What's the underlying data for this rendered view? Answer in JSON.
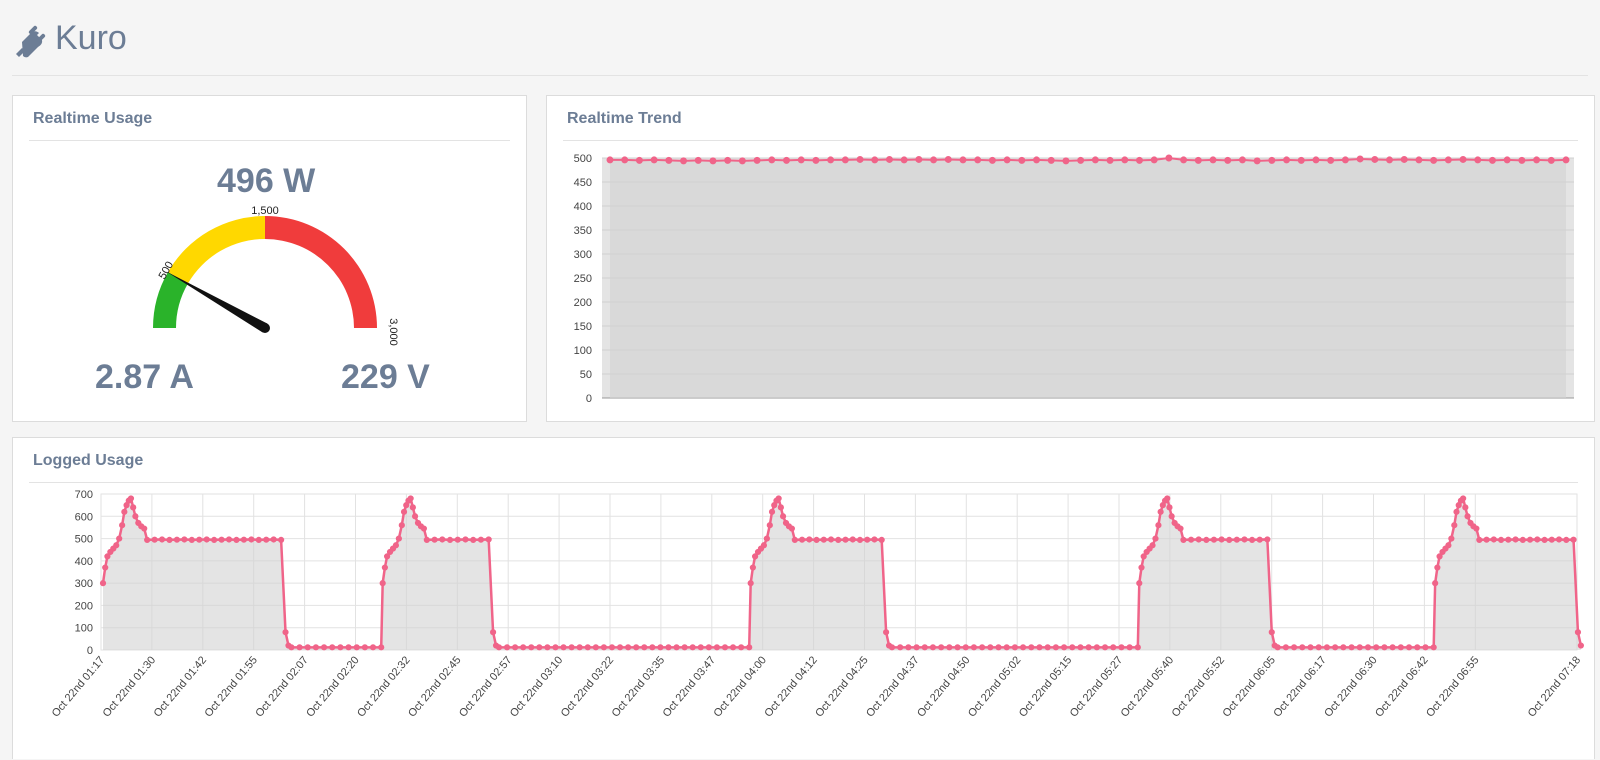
{
  "app": {
    "title": "Kuro",
    "icon": "plug-icon"
  },
  "colors": {
    "accent": "#6c7d95",
    "line": "#f06489",
    "fill": "#e5e5e5",
    "green": "#2ab32a",
    "yellow": "#ffd800",
    "red": "#f03c3c"
  },
  "realtime_usage": {
    "title": "Realtime Usage",
    "power": "496 W",
    "current": "2.87 A",
    "voltage": "229 V",
    "gauge": {
      "min": 0,
      "max": 3000,
      "value": 496,
      "labels": [
        "500",
        "1,500",
        "3,000"
      ],
      "bands": [
        {
          "from": 0,
          "to": 500,
          "color": "#2ab32a"
        },
        {
          "from": 500,
          "to": 1500,
          "color": "#ffd800"
        },
        {
          "from": 1500,
          "to": 3000,
          "color": "#f03c3c"
        }
      ]
    }
  },
  "realtime_trend": {
    "title": "Realtime Trend"
  },
  "logged_usage": {
    "title": "Logged Usage"
  },
  "chart_data": [
    {
      "type": "area",
      "name": "realtime-trend",
      "ylim": [
        0,
        500
      ],
      "yticks": [
        "0",
        "50",
        "100",
        "150",
        "200",
        "250",
        "300",
        "350",
        "400",
        "450",
        "500"
      ],
      "values": [
        496,
        496,
        495,
        496,
        495,
        494,
        495,
        494,
        495,
        494,
        495,
        496,
        495,
        496,
        495,
        496,
        496,
        497,
        496,
        497,
        496,
        497,
        496,
        497,
        496,
        496,
        495,
        496,
        495,
        496,
        495,
        494,
        495,
        496,
        495,
        496,
        495,
        496,
        500,
        496,
        495,
        496,
        495,
        496,
        494,
        495,
        496,
        495,
        496,
        495,
        496,
        498,
        497,
        496,
        497,
        496,
        495,
        496,
        497,
        496,
        495,
        496,
        495,
        496,
        495,
        496
      ]
    },
    {
      "type": "area",
      "name": "logged-usage",
      "ylim": [
        0,
        700
      ],
      "yticks": [
        "0",
        "100",
        "200",
        "300",
        "400",
        "500",
        "600",
        "700"
      ],
      "xticks": [
        "Oct 22nd 01:17",
        "Oct 22nd 01:30",
        "Oct 22nd 01:42",
        "Oct 22nd 01:55",
        "Oct 22nd 02:07",
        "Oct 22nd 02:20",
        "Oct 22nd 02:32",
        "Oct 22nd 02:45",
        "Oct 22nd 02:57",
        "Oct 22nd 03:10",
        "Oct 22nd 03:22",
        "Oct 22nd 03:35",
        "Oct 22nd 03:47",
        "Oct 22nd 04:00",
        "Oct 22nd 04:12",
        "Oct 22nd 04:25",
        "Oct 22nd 04:37",
        "Oct 22nd 04:50",
        "Oct 22nd 05:02",
        "Oct 22nd 05:15",
        "Oct 22nd 05:27",
        "Oct 22nd 05:40",
        "Oct 22nd 05:52",
        "Oct 22nd 06:05",
        "Oct 22nd 06:17",
        "Oct 22nd 06:30",
        "Oct 22nd 06:42",
        "Oct 22nd 06:55",
        "Oct 22nd 07:18"
      ],
      "cycles": [
        {
          "on": 0.0,
          "off": 0.122
        },
        {
          "on": 0.19,
          "off": 0.263
        },
        {
          "on": 0.44,
          "off": 0.53
        },
        {
          "on": 0.704,
          "off": 0.792
        },
        {
          "on": 0.905,
          "off": 1.0
        }
      ],
      "peak": 680,
      "plateau": 495,
      "idle": 12
    }
  ]
}
